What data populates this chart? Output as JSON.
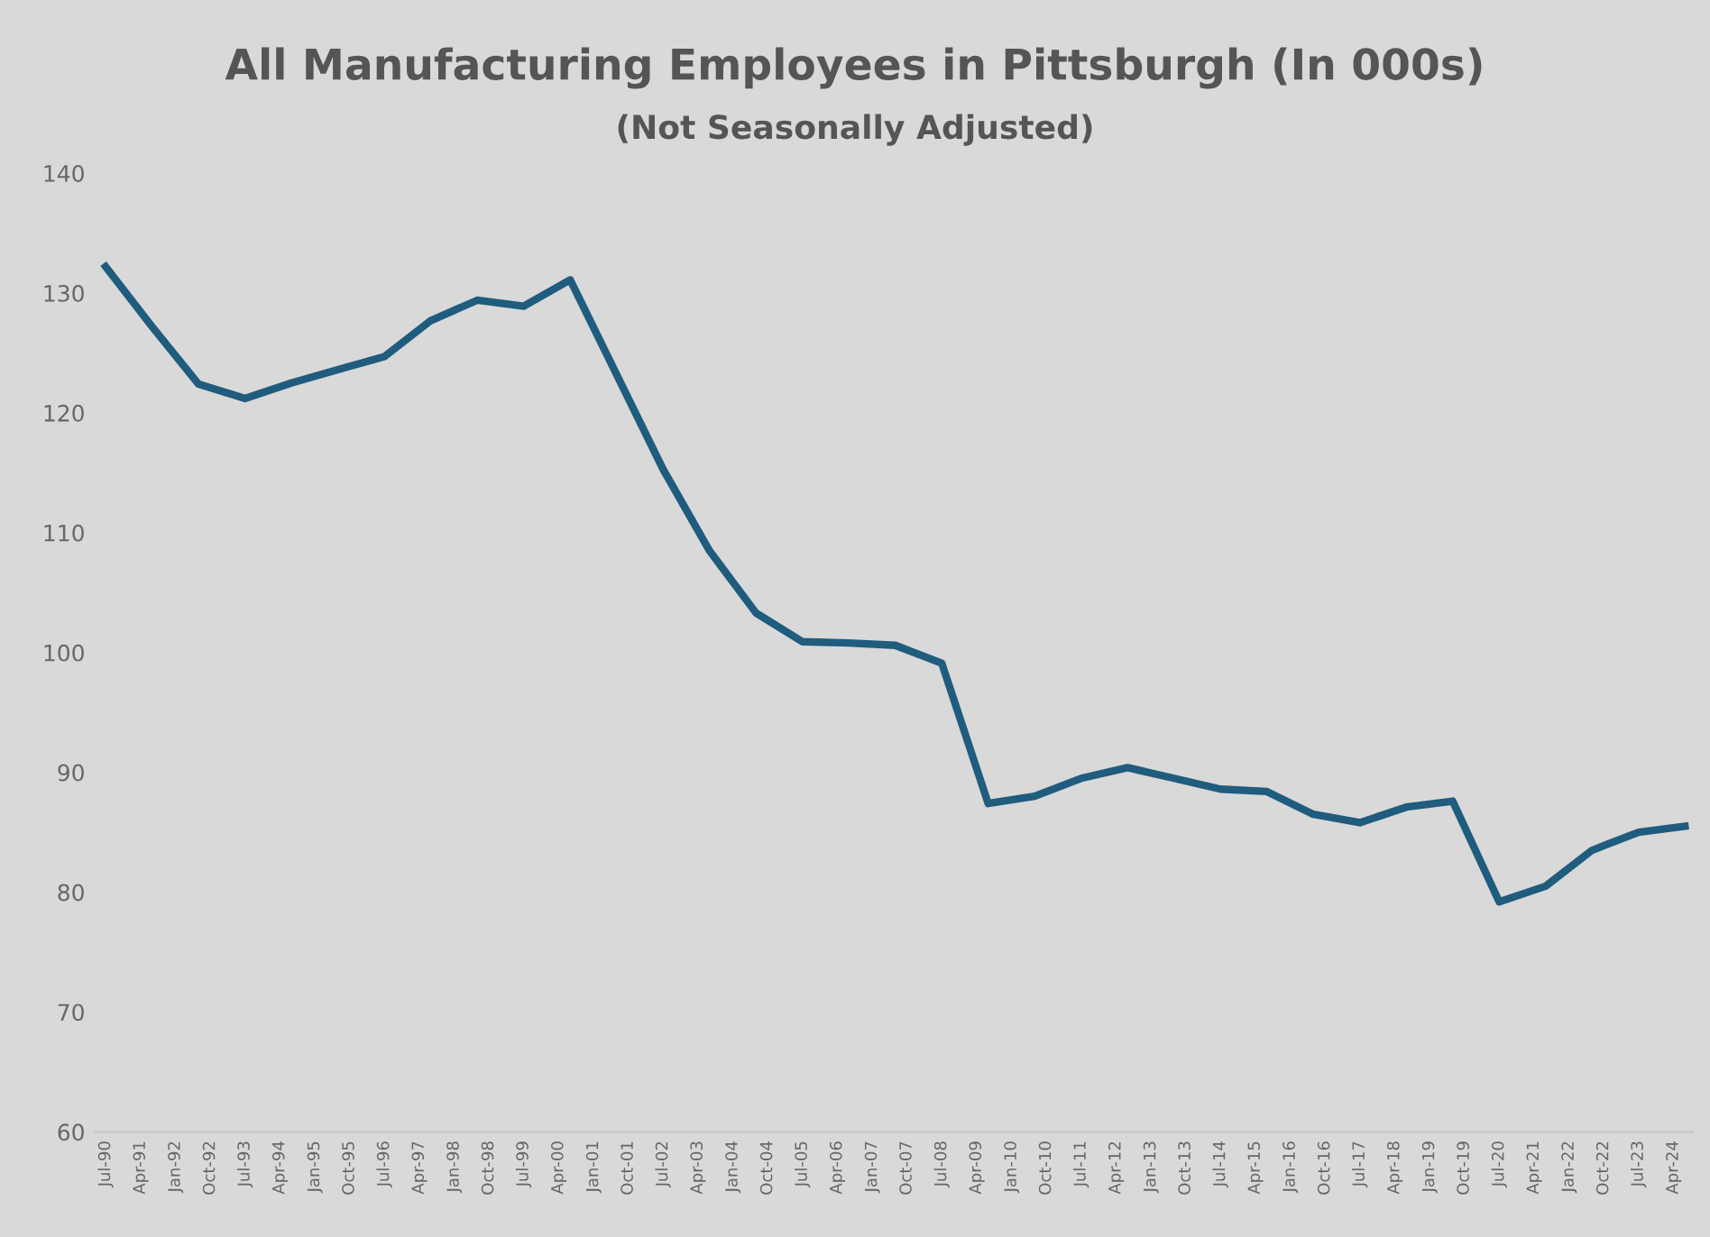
{
  "chart_data": {
    "type": "line",
    "title": "All Manufacturing Employees in Pittsburgh (In 000s)",
    "subtitle": "(Not Seasonally Adjusted)",
    "x": [
      "1990-07",
      "1991-07",
      "1992-07",
      "1993-07",
      "1994-07",
      "1995-07",
      "1996-07",
      "1997-07",
      "1998-07",
      "1999-07",
      "2000-07",
      "2001-07",
      "2002-07",
      "2003-07",
      "2004-07",
      "2005-07",
      "2006-07",
      "2007-07",
      "2008-07",
      "2009-07",
      "2010-07",
      "2011-07",
      "2012-07",
      "2013-07",
      "2014-07",
      "2015-07",
      "2016-07",
      "2017-07",
      "2018-07",
      "2019-07",
      "2020-07",
      "2021-07",
      "2022-07",
      "2023-07",
      "2024-07"
    ],
    "series": [
      {
        "color": "#1f5c7e",
        "values": [
          132.2,
          127.2,
          122.4,
          121.2,
          122.5,
          123.6,
          124.7,
          127.7,
          129.4,
          128.9,
          131.1,
          123.2,
          115.3,
          108.5,
          103.3,
          100.9,
          100.8,
          100.6,
          99.1,
          87.4,
          88.0,
          89.5,
          90.4,
          89.5,
          88.6,
          88.4,
          86.5,
          85.8,
          87.1,
          87.6,
          79.2,
          80.5,
          83.5,
          85.0,
          85.5
        ]
      }
    ],
    "xlim": [
      "1990-04",
      "2024-09"
    ],
    "xticks": [
      {
        "value": "1990-07",
        "label": "Jul-90"
      },
      {
        "value": "1991-04",
        "label": "Apr-91"
      },
      {
        "value": "1992-01",
        "label": "Jan-92"
      },
      {
        "value": "1992-10",
        "label": "Oct-92"
      },
      {
        "value": "1993-07",
        "label": "Jul-93"
      },
      {
        "value": "1994-04",
        "label": "Apr-94"
      },
      {
        "value": "1995-01",
        "label": "Jan-95"
      },
      {
        "value": "1995-10",
        "label": "Oct-95"
      },
      {
        "value": "1996-07",
        "label": "Jul-96"
      },
      {
        "value": "1997-04",
        "label": "Apr-97"
      },
      {
        "value": "1998-01",
        "label": "Jan-98"
      },
      {
        "value": "1998-10",
        "label": "Oct-98"
      },
      {
        "value": "1999-07",
        "label": "Jul-99"
      },
      {
        "value": "2000-04",
        "label": "Apr-00"
      },
      {
        "value": "2001-01",
        "label": "Jan-01"
      },
      {
        "value": "2001-10",
        "label": "Oct-01"
      },
      {
        "value": "2002-07",
        "label": "Jul-02"
      },
      {
        "value": "2003-04",
        "label": "Apr-03"
      },
      {
        "value": "2004-01",
        "label": "Jan-04"
      },
      {
        "value": "2004-10",
        "label": "Oct-04"
      },
      {
        "value": "2005-07",
        "label": "Jul-05"
      },
      {
        "value": "2006-04",
        "label": "Apr-06"
      },
      {
        "value": "2007-01",
        "label": "Jan-07"
      },
      {
        "value": "2007-10",
        "label": "Oct-07"
      },
      {
        "value": "2008-07",
        "label": "Jul-08"
      },
      {
        "value": "2009-04",
        "label": "Apr-09"
      },
      {
        "value": "2010-01",
        "label": "Jan-10"
      },
      {
        "value": "2010-10",
        "label": "Oct-10"
      },
      {
        "value": "2011-07",
        "label": "Jul-11"
      },
      {
        "value": "2012-04",
        "label": "Apr-12"
      },
      {
        "value": "2013-01",
        "label": "Jan-13"
      },
      {
        "value": "2013-10",
        "label": "Oct-13"
      },
      {
        "value": "2014-07",
        "label": "Jul-14"
      },
      {
        "value": "2015-04",
        "label": "Apr-15"
      },
      {
        "value": "2016-01",
        "label": "Jan-16"
      },
      {
        "value": "2016-10",
        "label": "Oct-16"
      },
      {
        "value": "2017-07",
        "label": "Jul-17"
      },
      {
        "value": "2018-04",
        "label": "Apr-18"
      },
      {
        "value": "2019-01",
        "label": "Jan-19"
      },
      {
        "value": "2019-10",
        "label": "Oct-19"
      },
      {
        "value": "2020-07",
        "label": "Jul-20"
      },
      {
        "value": "2021-04",
        "label": "Apr-21"
      },
      {
        "value": "2022-01",
        "label": "Jan-22"
      },
      {
        "value": "2022-10",
        "label": "Oct-22"
      },
      {
        "value": "2023-07",
        "label": "Jul-23"
      },
      {
        "value": "2024-04",
        "label": "Apr-24"
      }
    ],
    "ylim": [
      60,
      140
    ],
    "yticks": [
      60,
      70,
      80,
      90,
      100,
      110,
      120,
      130,
      140
    ],
    "grid": false,
    "marker": "none",
    "line_style": "solid"
  }
}
